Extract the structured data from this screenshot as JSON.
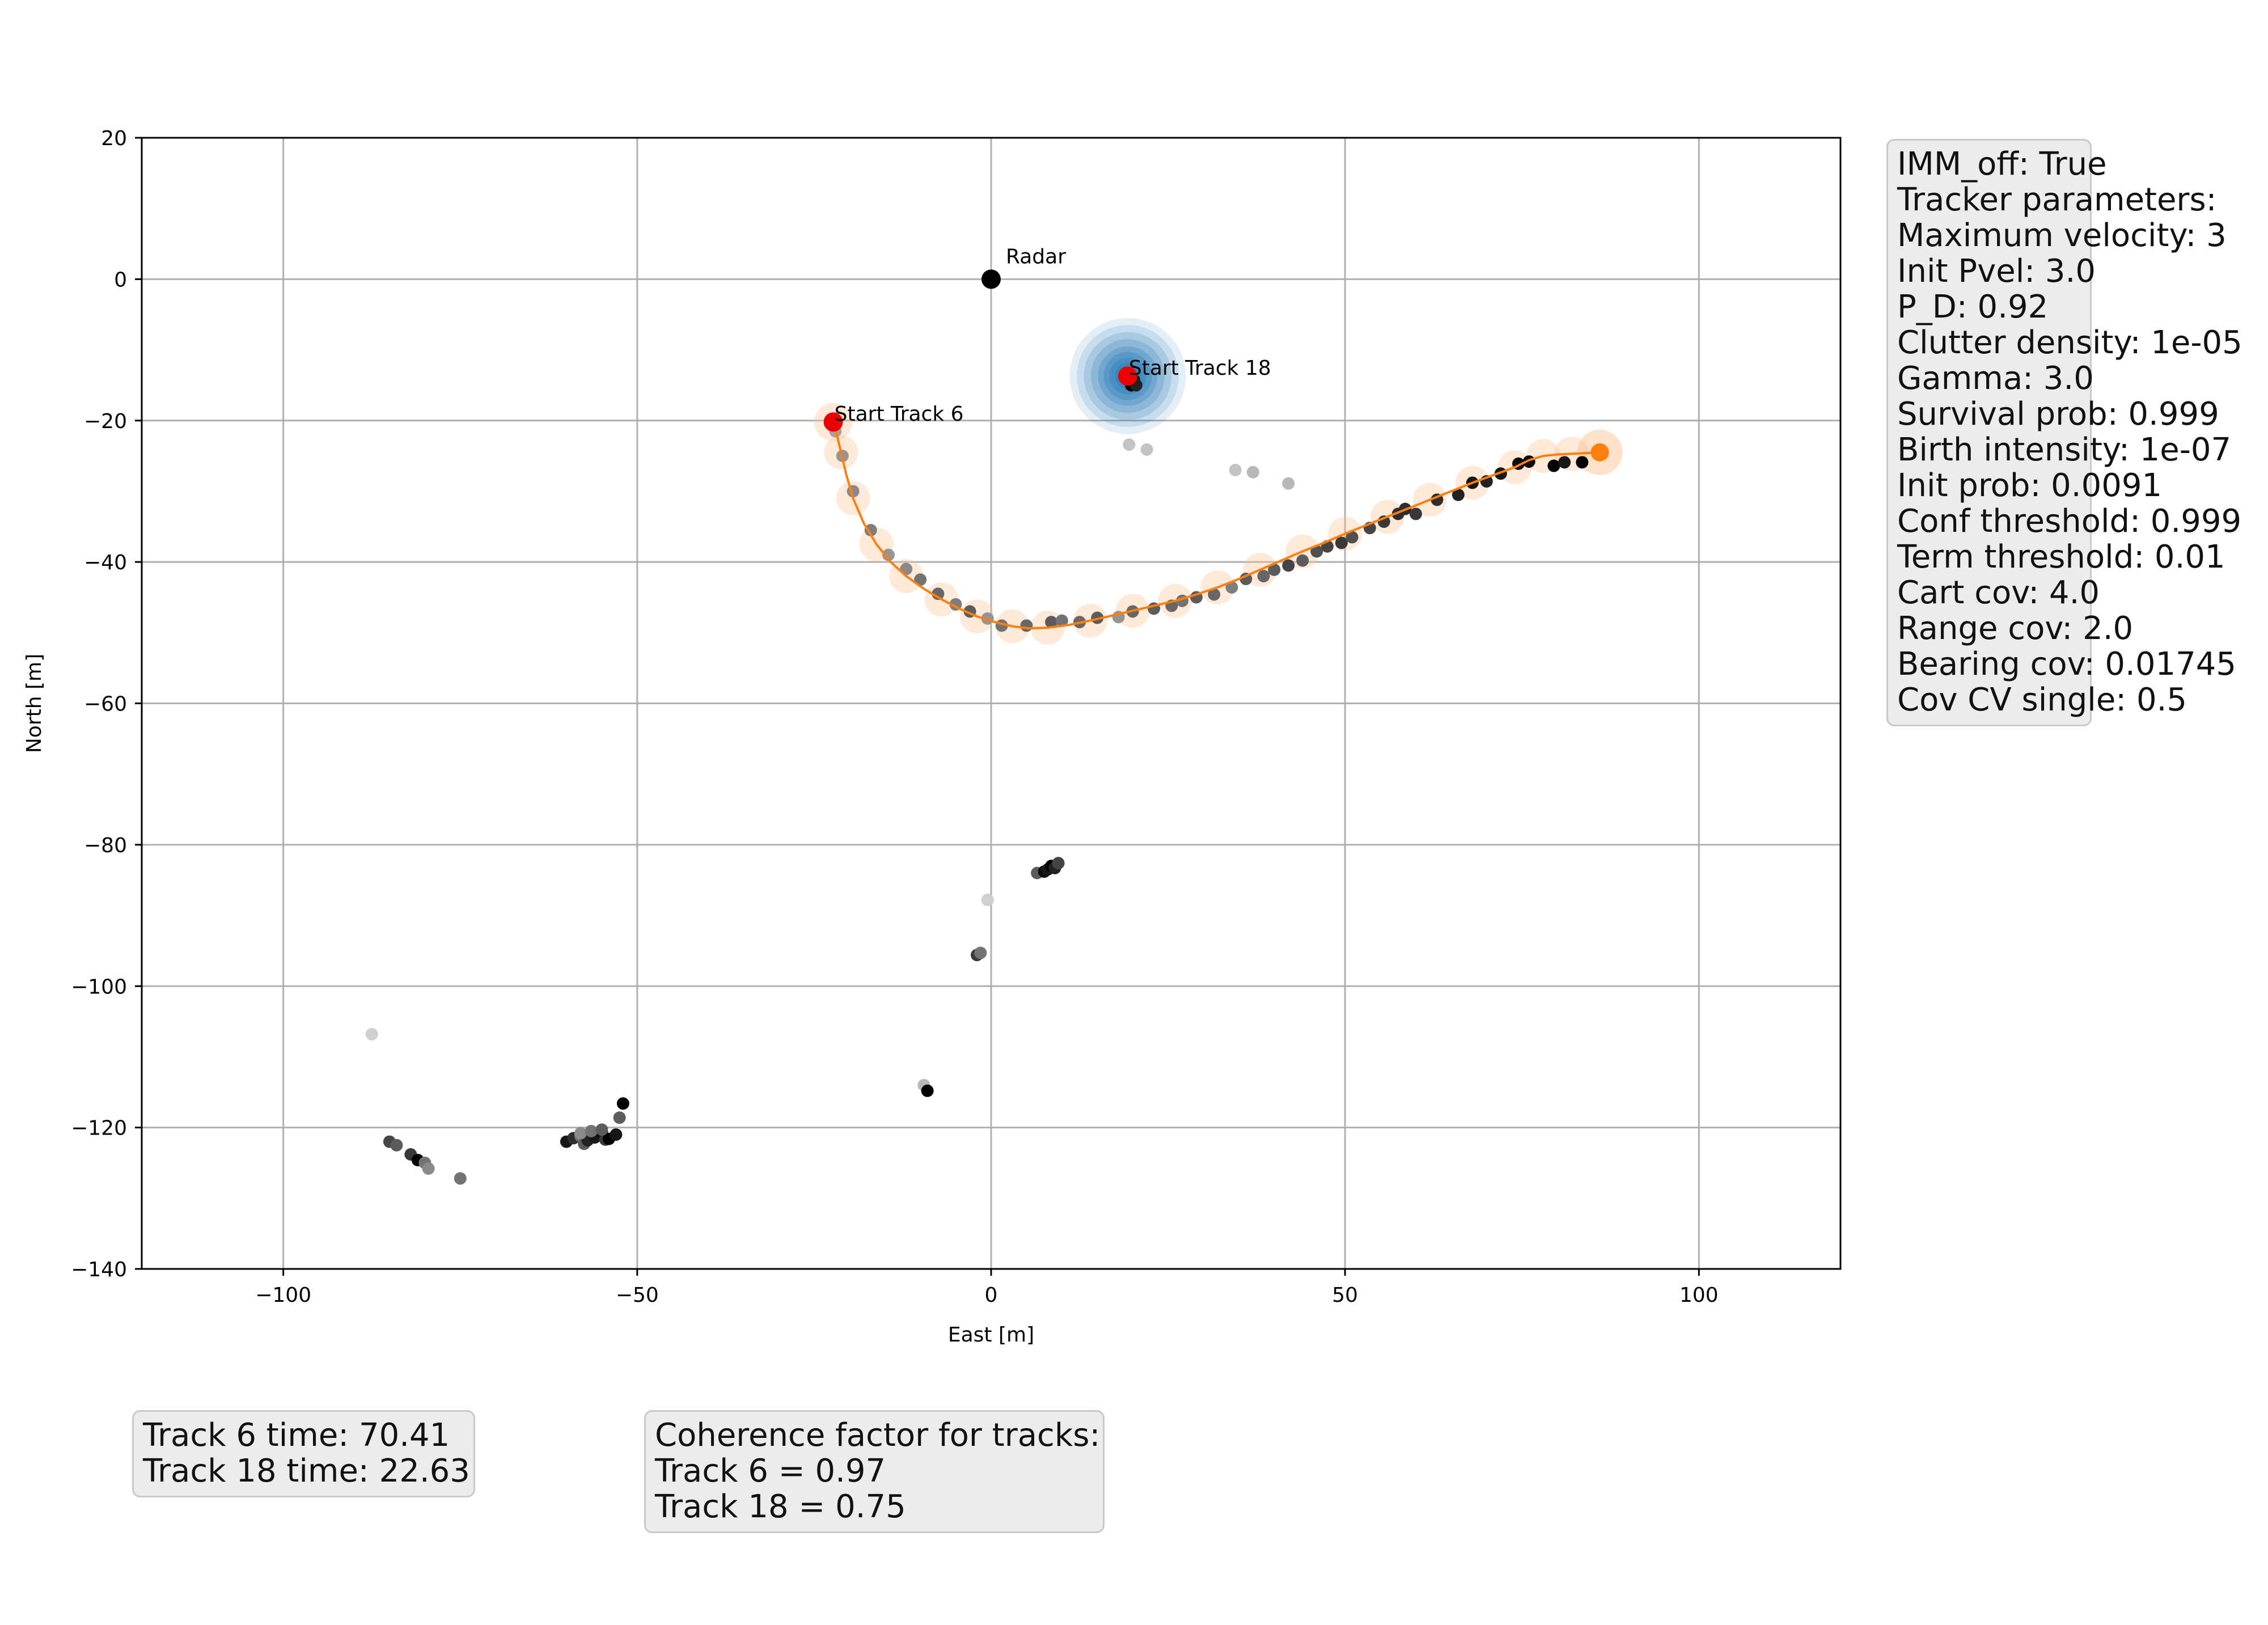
{
  "chart_data": {
    "type": "scatter",
    "title": "",
    "xlabel": "East [m]",
    "ylabel": "North [m]",
    "xlim": [
      -120,
      120
    ],
    "ylim": [
      -140,
      20
    ],
    "xticks": [
      -100,
      -50,
      0,
      50,
      100
    ],
    "yticks": [
      20,
      0,
      -20,
      -40,
      -60,
      -80,
      -100,
      -120,
      -140
    ],
    "grid": true,
    "legend": "none",
    "annotations": [
      {
        "text": "Radar",
        "x": 0,
        "y": 0
      },
      {
        "text": "Start Track 18",
        "x": 19.3,
        "y": -13.7
      },
      {
        "text": "Start Track 6",
        "x": -22.3,
        "y": -20.2
      }
    ],
    "series": [
      {
        "role": "track-6-estimate",
        "color": "#ff7f0e",
        "x": [
          -22.3,
          -21.8,
          -21.2,
          -20.5,
          -19.5,
          -18.0,
          -16.2,
          -14.2,
          -12.0,
          -9.5,
          -7.0,
          -4.5,
          -2.0,
          0.5,
          3.0,
          5.5,
          8.0,
          11.0,
          14.0,
          17.0,
          20.0,
          23.0,
          26.0,
          29.0,
          32.0,
          35.0,
          38.0,
          41.0,
          44.0,
          47.0,
          50.0,
          53.0,
          56.0,
          59.0,
          62.0,
          65.0,
          68.0,
          71.0,
          74.0,
          76.0,
          78.0,
          80.0,
          82.0,
          84.0,
          86.0
        ],
        "y": [
          -20.2,
          -22.0,
          -24.5,
          -27.5,
          -31.0,
          -34.5,
          -37.5,
          -40.0,
          -42.0,
          -43.8,
          -45.3,
          -46.6,
          -47.7,
          -48.5,
          -49.1,
          -49.4,
          -49.3,
          -48.9,
          -48.3,
          -47.6,
          -46.9,
          -46.2,
          -45.5,
          -44.6,
          -43.6,
          -42.4,
          -41.1,
          -39.8,
          -38.5,
          -37.3,
          -36.0,
          -34.8,
          -33.6,
          -32.4,
          -31.2,
          -30.0,
          -28.8,
          -27.7,
          -26.6,
          -25.6,
          -25.0,
          -24.8,
          -24.7,
          -24.6,
          -24.5
        ]
      },
      {
        "role": "track-6-covariance-circles",
        "color": "#ffbb88",
        "x": [
          -22.3,
          -21.2,
          -19.5,
          -16.2,
          -12.0,
          -7.0,
          -2.0,
          3.0,
          8.0,
          14.0,
          20.0,
          26.0,
          32.0,
          38.0,
          44.0,
          50.0,
          56.0,
          62.0,
          68.0,
          74.0,
          78.0,
          82.0,
          86.0
        ],
        "y": [
          -20.2,
          -24.5,
          -31.0,
          -37.5,
          -42.0,
          -45.3,
          -47.7,
          -49.1,
          -49.3,
          -48.3,
          -46.9,
          -45.5,
          -43.6,
          -41.1,
          -38.5,
          -36.0,
          -33.6,
          -31.2,
          -28.8,
          -26.6,
          -25.0,
          -24.7,
          -24.5
        ]
      },
      {
        "role": "track-18-estimate",
        "color": "#1f77b4",
        "x": [
          19.3,
          19.6,
          19.9,
          20.1
        ],
        "y": [
          -13.7,
          -14.0,
          -14.3,
          -14.6
        ]
      },
      {
        "role": "track-6-measurements",
        "color": "#000000",
        "x": [
          -22.0,
          -21.0,
          -19.5,
          -17.0,
          -14.5,
          -12.0,
          -10.0,
          -7.5,
          -5.0,
          -3.0,
          -0.5,
          1.5,
          5.0,
          8.5,
          10.0,
          12.5,
          15.0,
          18.0,
          20.0,
          23.0,
          25.5,
          27.0,
          29.0,
          31.5,
          34.0,
          36.0,
          38.5,
          40.0,
          42.0,
          44.0,
          46.0,
          47.5,
          49.5,
          51.0,
          53.5,
          55.5,
          57.5,
          58.5,
          60.0,
          63.0,
          66.0,
          68.0,
          70.0,
          72.0,
          74.5,
          76.0,
          79.5,
          81.0,
          83.5
        ],
        "y": [
          -21.5,
          -25.0,
          -30.0,
          -35.5,
          -39.0,
          -41.0,
          -42.5,
          -44.5,
          -46.0,
          -47.0,
          -48.0,
          -49.0,
          -49.0,
          -48.5,
          -48.3,
          -48.5,
          -47.9,
          -47.8,
          -47.0,
          -46.6,
          -46.2,
          -45.5,
          -45.0,
          -44.6,
          -43.6,
          -42.4,
          -42.0,
          -41.1,
          -40.5,
          -39.8,
          -38.5,
          -37.8,
          -37.3,
          -36.5,
          -35.2,
          -34.3,
          -33.2,
          -32.5,
          -33.2,
          -31.2,
          -30.5,
          -28.8,
          -28.6,
          -27.5,
          -26.1,
          -25.8,
          -26.4,
          -25.9,
          -25.9
        ],
        "shade": [
          0.3,
          0.35,
          0.4,
          0.45,
          0.35,
          0.4,
          0.5,
          0.55,
          0.45,
          0.6,
          0.35,
          0.5,
          0.55,
          0.6,
          0.5,
          0.55,
          0.6,
          0.35,
          0.55,
          0.6,
          0.55,
          0.5,
          0.6,
          0.55,
          0.45,
          0.6,
          0.55,
          0.6,
          0.7,
          0.6,
          0.65,
          0.7,
          0.75,
          0.65,
          0.7,
          0.75,
          0.8,
          0.8,
          0.75,
          0.8,
          0.85,
          0.9,
          0.85,
          0.9,
          0.95,
          0.95,
          1.0,
          0.9,
          1.0
        ]
      },
      {
        "role": "track-18-measurements",
        "color": "#000000",
        "x": [
          19.5,
          20.2,
          19.8,
          20.5,
          19.5,
          22.0
        ],
        "y": [
          -13.9,
          -14.3,
          -15.0,
          -15.0,
          -23.4,
          -24.1
        ],
        "shade": [
          0.8,
          0.9,
          1.0,
          0.85,
          0.15,
          0.15
        ]
      },
      {
        "role": "clutter",
        "color": "#000000",
        "x": [
          34.5,
          37.0,
          42.0,
          -0.5,
          -2.0,
          -1.5,
          6.5,
          7.5,
          8.0,
          8.5,
          9.0,
          9.5,
          -9.5,
          -9.0,
          -87.5,
          -85.0,
          -84.0,
          -82.0,
          -81.0,
          -80.0,
          -79.5,
          -75.0,
          -60.0,
          -59.0,
          -58.0,
          -57.5,
          -57.0,
          -56.0,
          -55.0,
          -54.5,
          -54.0,
          -53.0,
          -52.0,
          -52.5,
          -58.0,
          -56.5,
          -55.0
        ],
        "y": [
          -27.0,
          -27.3,
          -28.9,
          -87.8,
          -95.6,
          -95.3,
          -84.0,
          -83.8,
          -83.5,
          -83.0,
          -83.3,
          -82.6,
          -114.0,
          -114.8,
          -106.8,
          -122.0,
          -122.5,
          -123.8,
          -124.6,
          -125.0,
          -125.8,
          -127.2,
          -122.0,
          -121.5,
          -121.2,
          -122.3,
          -121.8,
          -121.4,
          -120.6,
          -121.7,
          -121.6,
          -121.0,
          -116.6,
          -118.6,
          -120.8,
          -120.5,
          -120.3
        ],
        "shade": [
          0.15,
          0.2,
          0.2,
          0.1,
          0.75,
          0.5,
          0.6,
          0.95,
          0.9,
          1.0,
          0.85,
          0.7,
          0.2,
          1.0,
          0.1,
          0.7,
          0.6,
          0.75,
          1.0,
          0.5,
          0.4,
          0.5,
          0.9,
          0.8,
          0.5,
          0.6,
          0.85,
          0.9,
          0.95,
          0.75,
          1.0,
          0.9,
          1.0,
          0.6,
          0.4,
          0.5,
          0.6
        ]
      }
    ]
  },
  "params_box": {
    "lines": [
      "IMM_off: True",
      "Tracker parameters:",
      "Maximum velocity: 3",
      "Init Pvel: 3.0",
      "P_D: 0.92",
      "Clutter density: 1e-05",
      "Gamma: 3.0",
      "Survival prob: 0.999",
      "Birth intensity: 1e-07",
      "Init prob: 0.0091",
      "Conf threshold: 0.999",
      "Term threshold: 0.01",
      "Cart cov: 4.0",
      "Range cov: 2.0",
      "Bearing cov: 0.01745",
      "Cov CV single: 0.5"
    ]
  },
  "times_box": {
    "lines": [
      "Track 6 time: 70.41",
      "Track 18 time: 22.63"
    ]
  },
  "coherence_box": {
    "lines": [
      "Coherence factor for tracks:",
      "Track 6 = 0.97",
      "Track 18 = 0.75"
    ]
  },
  "colors": {
    "track6": "#ff7f0e",
    "track18": "#1f77b4",
    "start_marker": "#ee0000",
    "radar": "#000000",
    "grid": "#b0b0b0"
  }
}
